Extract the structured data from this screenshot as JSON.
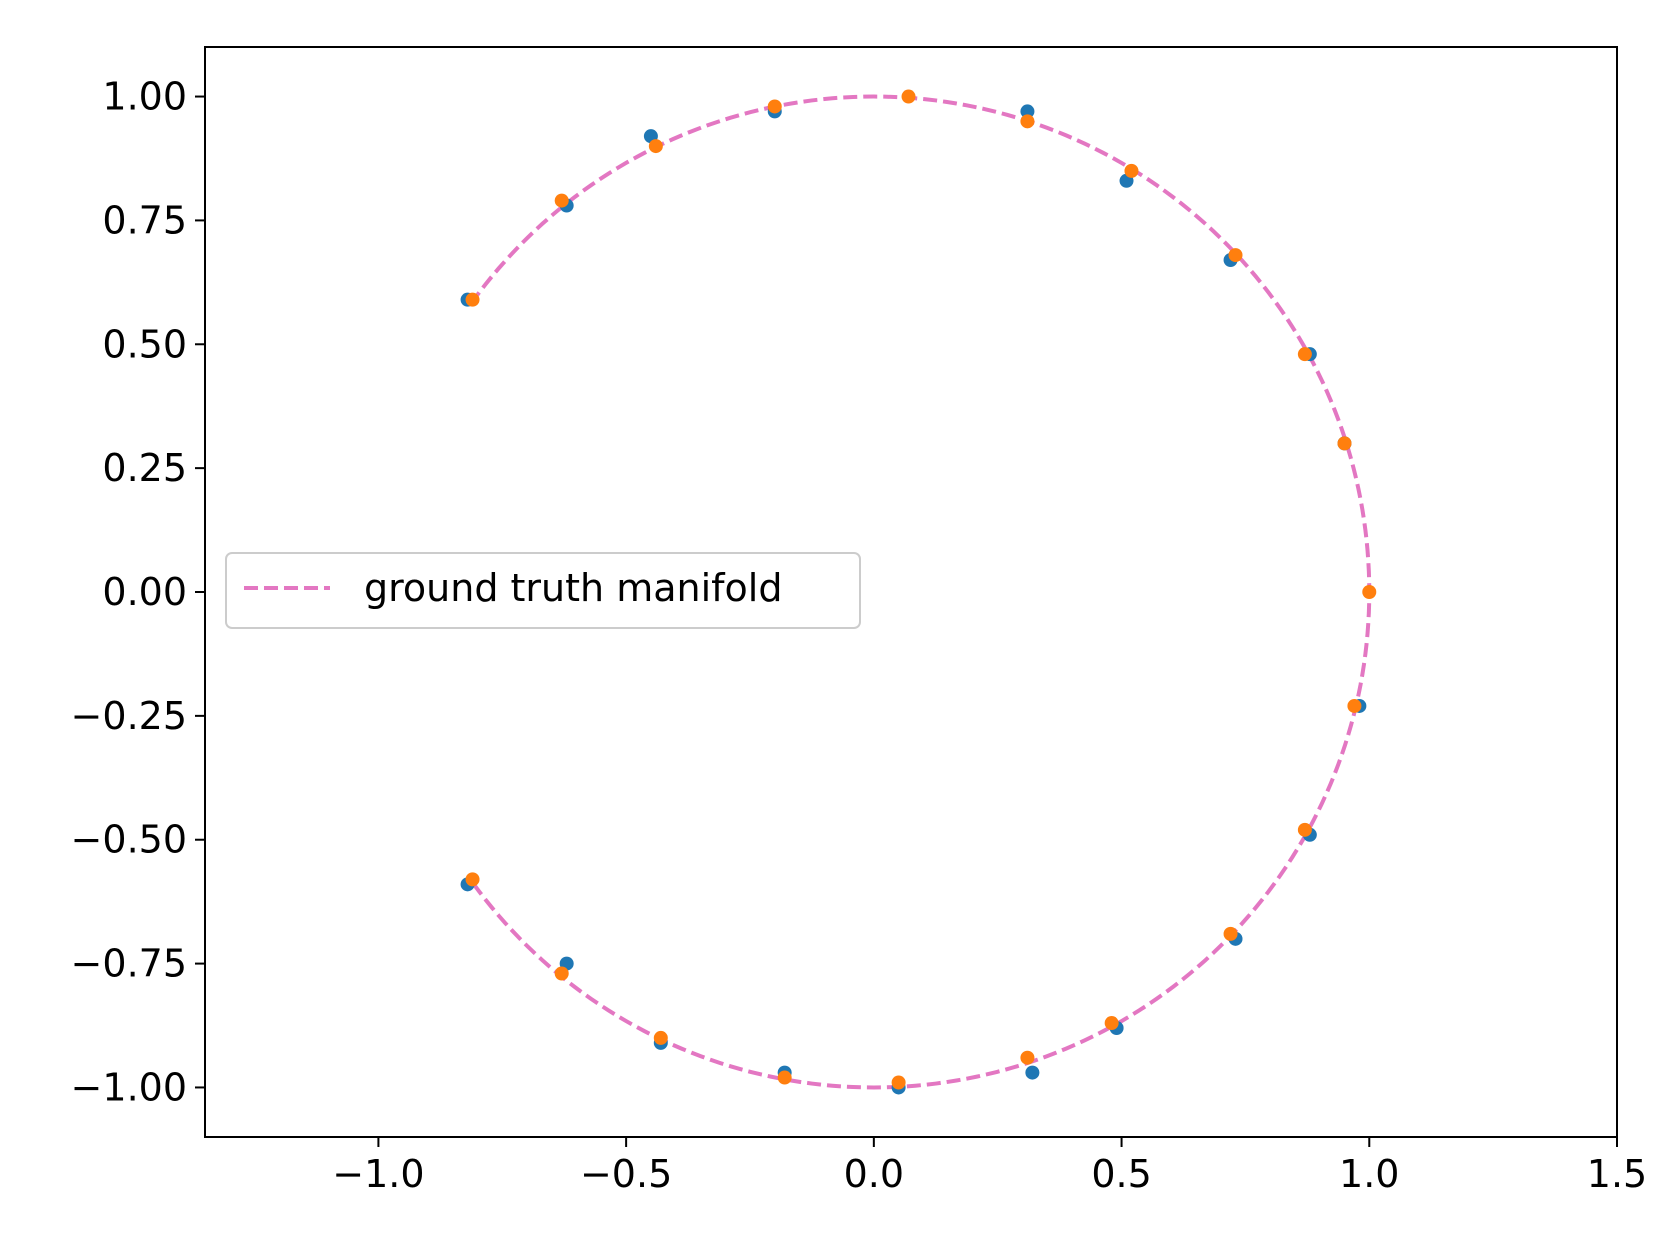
{
  "chart_data": {
    "type": "scatter",
    "title": "",
    "xlabel": "",
    "ylabel": "",
    "xlim": [
      -1.35,
      1.5
    ],
    "ylim": [
      -1.1,
      1.1
    ],
    "xticks": [
      -1.0,
      -0.5,
      0.0,
      0.5,
      1.0,
      1.5
    ],
    "xtick_labels": [
      "−1.0",
      "−0.5",
      "0.0",
      "0.5",
      "1.0",
      "1.5"
    ],
    "yticks": [
      1.0,
      0.75,
      0.5,
      0.25,
      0.0,
      -0.25,
      -0.5,
      -0.75,
      -1.0
    ],
    "ytick_labels": [
      "1.00",
      "0.75",
      "0.50",
      "0.25",
      "0.00",
      "−0.25",
      "−0.50",
      "−0.75",
      "−1.00"
    ],
    "grid": false,
    "legend_position": "center-left",
    "series": [
      {
        "name": "ground truth manifold",
        "kind": "dashed-line",
        "color": "#e377c2",
        "function": "unit circle arc (cos t, sin t)",
        "theta_range_deg": [
          -144,
          144
        ]
      },
      {
        "kind": "points",
        "color": "#1f77b4",
        "x": [
          -0.82,
          -0.62,
          -0.45,
          -0.2,
          0.31,
          0.51,
          0.72,
          0.88,
          0.95,
          0.98,
          0.88,
          0.73,
          0.49,
          0.32,
          0.05,
          -0.18,
          -0.43,
          -0.62,
          -0.82
        ],
        "y": [
          0.59,
          0.78,
          0.92,
          0.97,
          0.97,
          0.83,
          0.67,
          0.48,
          0.3,
          -0.23,
          -0.49,
          -0.7,
          -0.88,
          -0.97,
          -1.0,
          -0.97,
          -0.91,
          -0.75,
          -0.59
        ]
      },
      {
        "kind": "points",
        "color": "#ff7f0e",
        "x": [
          -0.81,
          -0.63,
          -0.44,
          -0.2,
          0.07,
          0.31,
          0.52,
          0.73,
          0.87,
          0.95,
          1.0,
          0.97,
          0.87,
          0.72,
          0.48,
          0.31,
          0.05,
          -0.18,
          -0.43,
          -0.63,
          -0.81
        ],
        "y": [
          0.59,
          0.79,
          0.9,
          0.98,
          1.0,
          0.95,
          0.85,
          0.68,
          0.48,
          0.3,
          0.0,
          -0.23,
          -0.48,
          -0.69,
          -0.87,
          -0.94,
          -0.99,
          -0.98,
          -0.9,
          -0.77,
          -0.58
        ]
      }
    ]
  }
}
